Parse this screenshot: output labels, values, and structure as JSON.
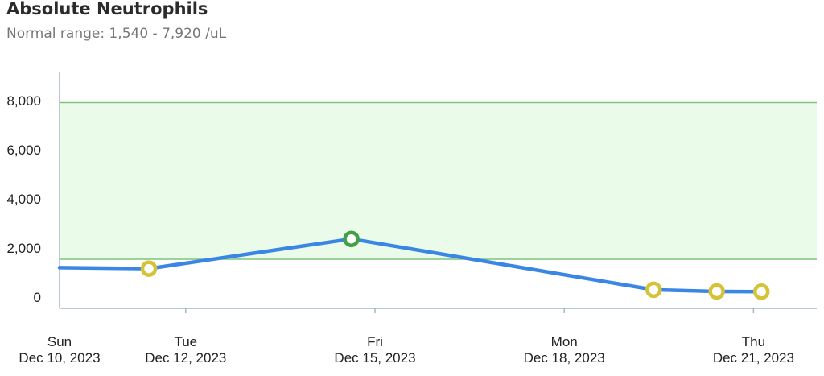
{
  "header": {
    "title": "Absolute Neutrophils",
    "subtitle": "Normal range: 1,540 - 7,920 /uL"
  },
  "chart_data": {
    "type": "line",
    "title": "Absolute Neutrophils",
    "subtitle": "Normal range: 1,540 - 7,920 /uL",
    "normal_range": [
      1540,
      7920
    ],
    "ylim": [
      0,
      9000
    ],
    "y_ticks": [
      {
        "value": 0,
        "label": "0"
      },
      {
        "value": 2000,
        "label": "2,000"
      },
      {
        "value": 4000,
        "label": "4,000"
      },
      {
        "value": 6000,
        "label": "6,000"
      },
      {
        "value": 8000,
        "label": "8,000"
      }
    ],
    "xlim": [
      "2023-12-10",
      "2023-12-21T18:00"
    ],
    "x_ticks": [
      {
        "date": "2023-12-10",
        "day": "Sun",
        "label": "Dec 10, 2023"
      },
      {
        "date": "2023-12-12",
        "day": "Tue",
        "label": "Dec 12, 2023"
      },
      {
        "date": "2023-12-15",
        "day": "Fri",
        "label": "Dec 15, 2023"
      },
      {
        "date": "2023-12-18",
        "day": "Mon",
        "label": "Dec 18, 2023"
      },
      {
        "date": "2023-12-21",
        "day": "Thu",
        "label": "Dec 21, 2023"
      }
    ],
    "series": [
      {
        "points": [
          {
            "x": "2023-12-10",
            "y": 1200,
            "marker": false
          },
          {
            "x": "2023-12-11T10:00",
            "y": 1160,
            "status": "low"
          },
          {
            "x": "2023-12-14T15:00",
            "y": 2370,
            "status": "normal"
          },
          {
            "x": "2023-12-19T10:00",
            "y": 300,
            "status": "low"
          },
          {
            "x": "2023-12-20T10:00",
            "y": 230,
            "status": "low"
          },
          {
            "x": "2023-12-21T03:00",
            "y": 220,
            "status": "low"
          }
        ]
      }
    ],
    "grid": false,
    "colors": {
      "line": "#3a86e4",
      "range_fill": "#ebfbe9",
      "range_border": "#7fc37f",
      "normal_marker": "#43a047",
      "low_marker": "#d6c236",
      "axis": "#a6b8c6"
    }
  }
}
